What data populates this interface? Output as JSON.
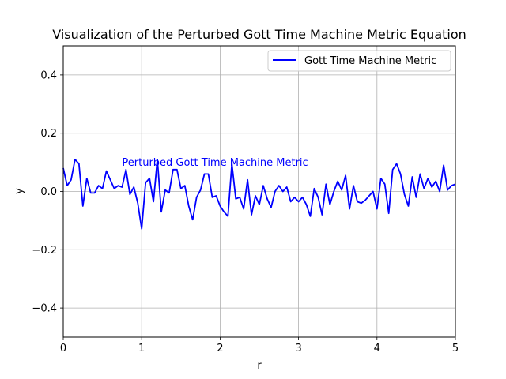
{
  "chart_data": {
    "type": "line",
    "title": "Visualization of the Perturbed Gott Time Machine Metric Equation",
    "xlabel": "r",
    "ylabel": "y",
    "xlim": [
      0,
      5
    ],
    "ylim": [
      -0.5,
      0.5
    ],
    "xticks": [
      0,
      1,
      2,
      3,
      4,
      5
    ],
    "xtick_labels": [
      "0",
      "1",
      "2",
      "3",
      "4",
      "5"
    ],
    "yticks": [
      -0.4,
      -0.2,
      0.0,
      0.2,
      0.4
    ],
    "ytick_labels": [
      "−0.4",
      "−0.2",
      "0.0",
      "0.2",
      "0.4"
    ],
    "grid": true,
    "legend_position": "top-right",
    "series": [
      {
        "name": "Gott Time Machine Metric",
        "color": "#0000ff",
        "x": [
          0.0,
          0.05,
          0.1,
          0.15,
          0.2,
          0.25,
          0.3,
          0.35,
          0.4,
          0.45,
          0.5,
          0.55,
          0.6,
          0.65,
          0.7,
          0.75,
          0.8,
          0.85,
          0.9,
          0.95,
          1.0,
          1.05,
          1.1,
          1.15,
          1.2,
          1.25,
          1.3,
          1.35,
          1.4,
          1.45,
          1.5,
          1.55,
          1.6,
          1.65,
          1.7,
          1.75,
          1.8,
          1.85,
          1.9,
          1.95,
          2.0,
          2.05,
          2.1,
          2.15,
          2.2,
          2.25,
          2.3,
          2.35,
          2.4,
          2.45,
          2.5,
          2.55,
          2.6,
          2.65,
          2.7,
          2.75,
          2.8,
          2.85,
          2.9,
          2.95,
          3.0,
          3.05,
          3.1,
          3.15,
          3.2,
          3.25,
          3.3,
          3.35,
          3.4,
          3.45,
          3.5,
          3.55,
          3.6,
          3.65,
          3.7,
          3.75,
          3.8,
          3.85,
          3.9,
          3.95,
          4.0,
          4.05,
          4.1,
          4.15,
          4.2,
          4.25,
          4.3,
          4.35,
          4.4,
          4.45,
          4.5,
          4.55,
          4.6,
          4.65,
          4.7,
          4.75,
          4.8,
          4.85,
          4.9,
          4.95,
          5.0
        ],
        "y": [
          0.08,
          0.02,
          0.04,
          0.11,
          0.095,
          -0.05,
          0.045,
          -0.005,
          -0.005,
          0.02,
          0.01,
          0.07,
          0.04,
          0.01,
          0.02,
          0.015,
          0.075,
          -0.01,
          0.015,
          -0.04,
          -0.128,
          0.03,
          0.045,
          -0.035,
          0.11,
          -0.07,
          0.005,
          -0.005,
          0.075,
          0.075,
          0.01,
          0.02,
          -0.05,
          -0.097,
          -0.02,
          0.005,
          0.06,
          0.06,
          -0.02,
          -0.015,
          -0.05,
          -0.07,
          -0.085,
          0.095,
          -0.025,
          -0.02,
          -0.06,
          0.04,
          -0.08,
          -0.015,
          -0.045,
          0.02,
          -0.025,
          -0.055,
          0.0,
          0.02,
          0.0,
          0.015,
          -0.035,
          -0.02,
          -0.035,
          -0.02,
          -0.045,
          -0.085,
          0.01,
          -0.02,
          -0.08,
          0.025,
          -0.045,
          0.0,
          0.035,
          0.005,
          0.055,
          -0.06,
          0.02,
          -0.035,
          -0.04,
          -0.03,
          -0.015,
          0.0,
          -0.06,
          0.045,
          0.025,
          -0.075,
          0.075,
          0.095,
          0.06,
          -0.01,
          -0.05,
          0.05,
          -0.02,
          0.06,
          0.01,
          0.045,
          0.015,
          0.035,
          0.0,
          0.09,
          0.005,
          0.02,
          0.025
        ]
      }
    ],
    "annotations": [
      {
        "text": "Perturbed Gott Time Machine Metric",
        "x": 0.75,
        "y": 0.1,
        "color": "#0000ff"
      }
    ]
  }
}
